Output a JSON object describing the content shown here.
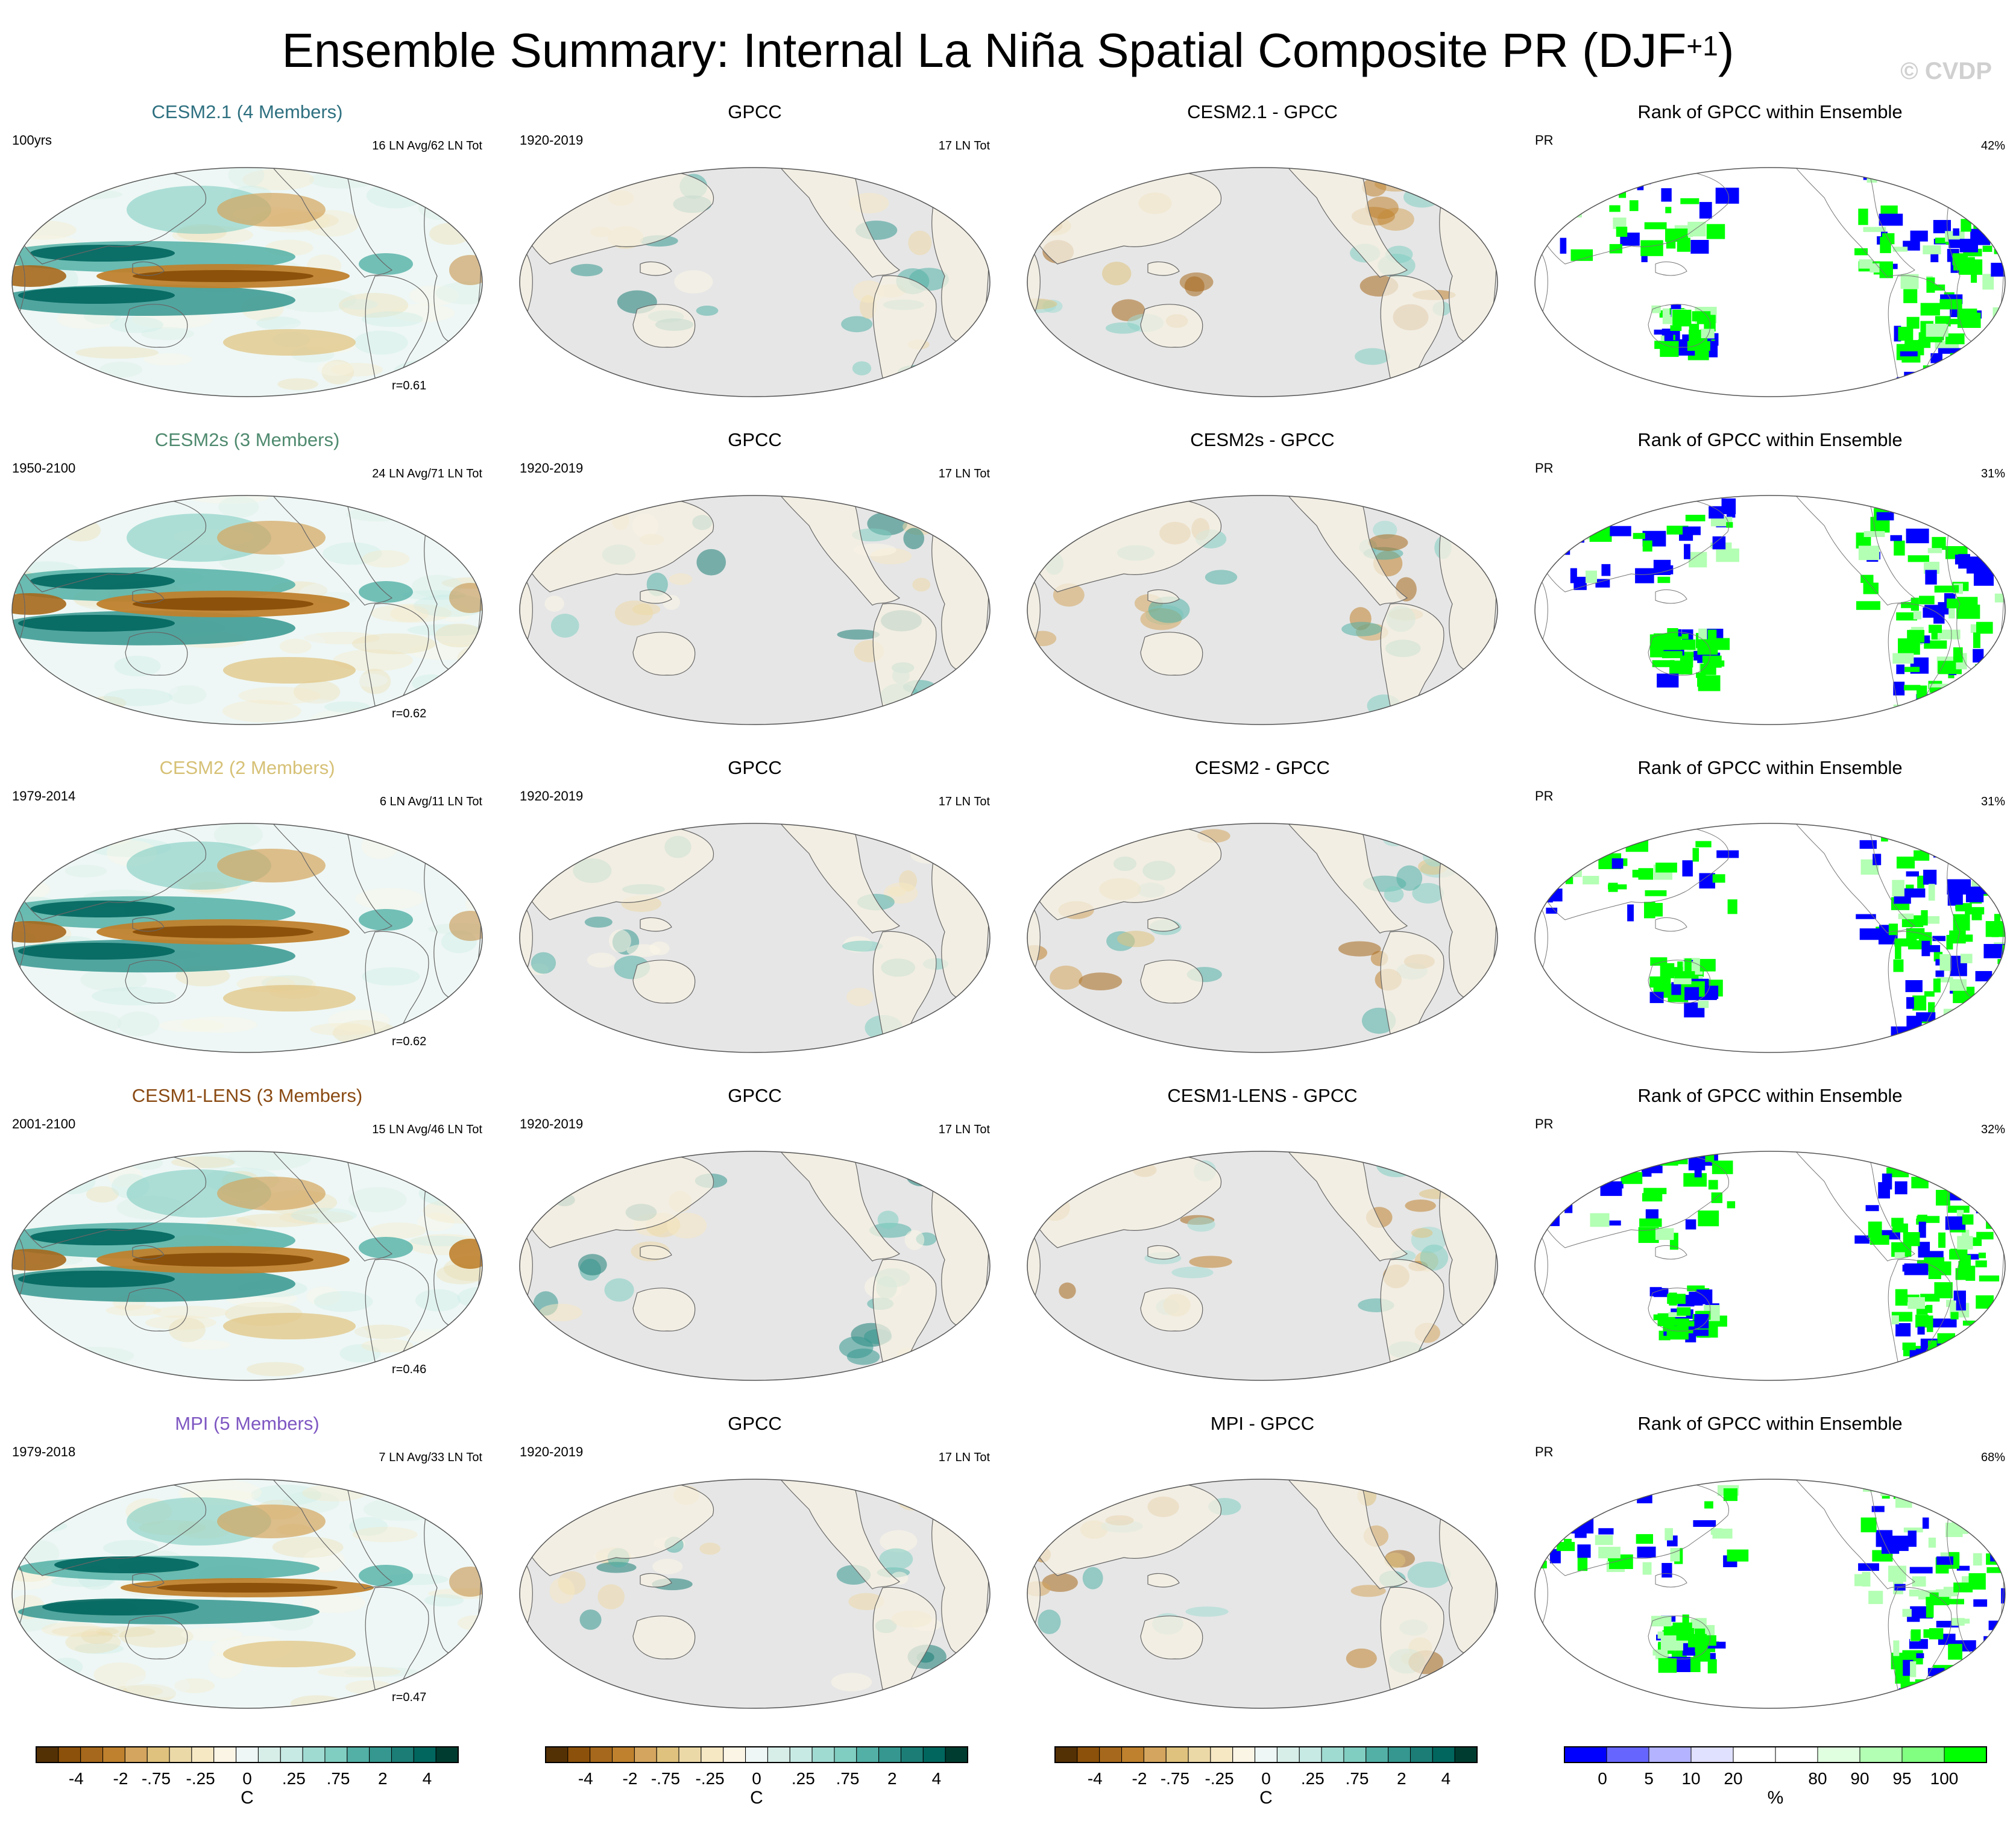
{
  "title": {
    "main": "Ensemble Summary: Internal La Niña Spatial Composite PR (DJF",
    "sup": "+1",
    "close": ")"
  },
  "watermark": "© CVDP",
  "colors": {
    "brown": [
      "#543005",
      "#8c510a",
      "#a6681c",
      "#bf812d",
      "#d4a55e",
      "#dfc27d",
      "#ecd9a8",
      "#f6e8c3",
      "#fbf5e6",
      "#eef7f5",
      "#d7eee8",
      "#c7eae5",
      "#a0dbd2",
      "#80cdc1",
      "#52b0a6",
      "#35978f",
      "#1b7d76",
      "#01665e",
      "#003c30"
    ],
    "rank": [
      "#0000ff",
      "#6666ff",
      "#b3b3ff",
      "#e0e0ff",
      "#ffffff",
      "#ffffff",
      "#e0ffe0",
      "#b3ffb3",
      "#80ff80",
      "#00ff00"
    ],
    "ocean_gray": "#e6e6e6",
    "model_title_colors": {
      "cesm21": "#2e7080",
      "cesm2s": "#4f8a6f",
      "cesm2": "#d6c176",
      "cesm1lens": "#8a4a13",
      "mpi": "#7e57c2"
    }
  },
  "rows": [
    {
      "model": {
        "title": "CESM2.1 (4 Members)",
        "period": "100yrs",
        "count": "16 LN Avg/62 LN Tot",
        "corr": "r=0.61",
        "color_key": "cesm21"
      },
      "obs": {
        "title": "GPCC",
        "period": "1920-2019",
        "count": "17 LN Tot"
      },
      "diff": {
        "title": "CESM2.1 - GPCC"
      },
      "rank": {
        "title": "Rank of GPCC within Ensemble",
        "var": "PR",
        "pct": "42%"
      }
    },
    {
      "model": {
        "title": "CESM2s (3 Members)",
        "period": "1950-2100",
        "count": "24 LN Avg/71 LN Tot",
        "corr": "r=0.62",
        "color_key": "cesm2s"
      },
      "obs": {
        "title": "GPCC",
        "period": "1920-2019",
        "count": "17 LN Tot"
      },
      "diff": {
        "title": "CESM2s - GPCC"
      },
      "rank": {
        "title": "Rank of GPCC within Ensemble",
        "var": "PR",
        "pct": "31%"
      }
    },
    {
      "model": {
        "title": "CESM2 (2 Members)",
        "period": "1979-2014",
        "count": "6 LN Avg/11 LN Tot",
        "corr": "r=0.62",
        "color_key": "cesm2"
      },
      "obs": {
        "title": "GPCC",
        "period": "1920-2019",
        "count": "17 LN Tot"
      },
      "diff": {
        "title": "CESM2 - GPCC"
      },
      "rank": {
        "title": "Rank of GPCC within Ensemble",
        "var": "PR",
        "pct": "31%"
      }
    },
    {
      "model": {
        "title": "CESM1-LENS (3 Members)",
        "period": "2001-2100",
        "count": "15 LN Avg/46 LN Tot",
        "corr": "r=0.46",
        "color_key": "cesm1lens"
      },
      "obs": {
        "title": "GPCC",
        "period": "1920-2019",
        "count": "17 LN Tot"
      },
      "diff": {
        "title": "CESM1-LENS - GPCC"
      },
      "rank": {
        "title": "Rank of GPCC within Ensemble",
        "var": "PR",
        "pct": "32%"
      }
    },
    {
      "model": {
        "title": "MPI (5 Members)",
        "period": "1979-2018",
        "count": "7 LN Avg/33 LN Tot",
        "corr": "r=0.47",
        "color_key": "mpi"
      },
      "obs": {
        "title": "GPCC",
        "period": "1920-2019",
        "count": "17 LN Tot"
      },
      "diff": {
        "title": "MPI - GPCC"
      },
      "rank": {
        "title": "Rank of GPCC within Ensemble",
        "var": "PR",
        "pct": "68%"
      }
    }
  ],
  "colorbars": [
    {
      "labels": [
        "-4",
        "-2",
        "-.75",
        "-.25",
        "0",
        ".25",
        ".75",
        "2",
        "4"
      ],
      "unit": "C"
    },
    {
      "labels": [
        "-4",
        "-2",
        "-.75",
        "-.25",
        "0",
        ".25",
        ".75",
        "2",
        "4"
      ],
      "unit": "C"
    },
    {
      "labels": [
        "-4",
        "-2",
        "-.75",
        "-.25",
        "0",
        ".25",
        ".75",
        "2",
        "4"
      ],
      "unit": "C"
    },
    {
      "labels": [
        "0",
        "5",
        "10",
        "20",
        "80",
        "90",
        "95",
        "100"
      ],
      "unit": "%"
    }
  ],
  "chart_data": {
    "type": "heatmap",
    "title": "Ensemble Summary: Internal La Niña Spatial Composite PR (DJF+1)",
    "layout": "5 rows x 4 columns of global map panels",
    "columns": [
      "model composite",
      "GPCC",
      "model - GPCC",
      "Rank of GPCC within Ensemble"
    ],
    "models": [
      "CESM2.1 (4 Members)",
      "CESM2s (3 Members)",
      "CESM2 (2 Members)",
      "CESM1-LENS (3 Members)",
      "MPI (5 Members)"
    ],
    "pattern_correlation": [
      0.61,
      0.62,
      0.62,
      0.46,
      0.47
    ],
    "rank_percent": [
      42,
      31,
      31,
      32,
      68
    ],
    "composite_scale": {
      "levels": [
        -4,
        -2,
        -0.75,
        -0.25,
        0,
        0.25,
        0.75,
        2,
        4
      ],
      "unit": "C"
    },
    "rank_scale": {
      "levels": [
        0,
        5,
        10,
        20,
        80,
        90,
        95,
        100
      ],
      "unit": "%"
    }
  }
}
